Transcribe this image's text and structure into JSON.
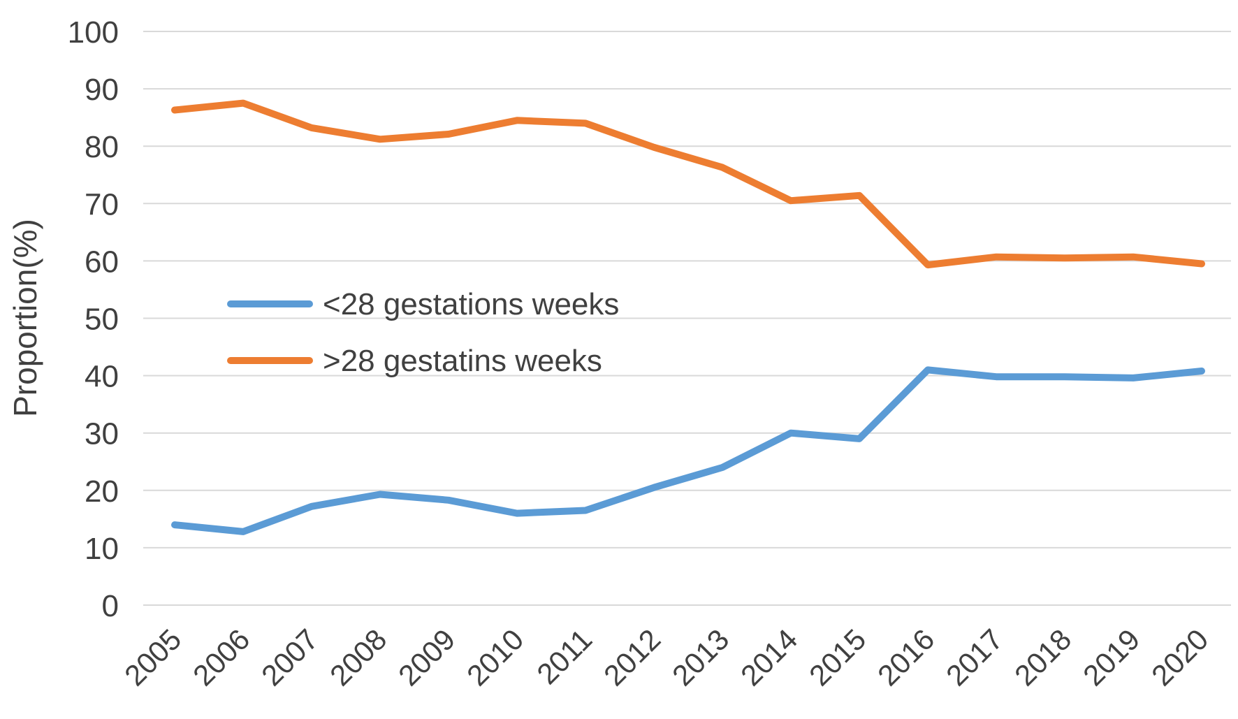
{
  "chart_data": {
    "type": "line",
    "title": "",
    "xlabel": "",
    "ylabel": "Proportion(%)",
    "ylim": [
      0,
      100
    ],
    "yticks": [
      "0",
      "10",
      "20",
      "30",
      "40",
      "50",
      "60",
      "70",
      "80",
      "90",
      "100"
    ],
    "grid": true,
    "legend_position": "center-left",
    "categories": [
      "2005",
      "2006",
      "2007",
      "2008",
      "2009",
      "2010",
      "2011",
      "2012",
      "2013",
      "2014",
      "2015",
      "2016",
      "2017",
      "2018",
      "2019",
      "2020"
    ],
    "series": [
      {
        "name": "<28 gestations weeks",
        "color": "#5b9bd5",
        "values": [
          14,
          12.8,
          17.2,
          19.3,
          18.3,
          16,
          16.5,
          20.5,
          24,
          30,
          29,
          41,
          39.8,
          39.8,
          39.6,
          40.8
        ]
      },
      {
        "name": ">28 gestatins weeks",
        "color": "#ed7d31",
        "values": [
          86.3,
          87.5,
          83.2,
          81.2,
          82.1,
          84.5,
          84,
          79.8,
          76.3,
          70.5,
          71.4,
          59.3,
          60.7,
          60.5,
          60.7,
          59.5
        ]
      }
    ]
  }
}
